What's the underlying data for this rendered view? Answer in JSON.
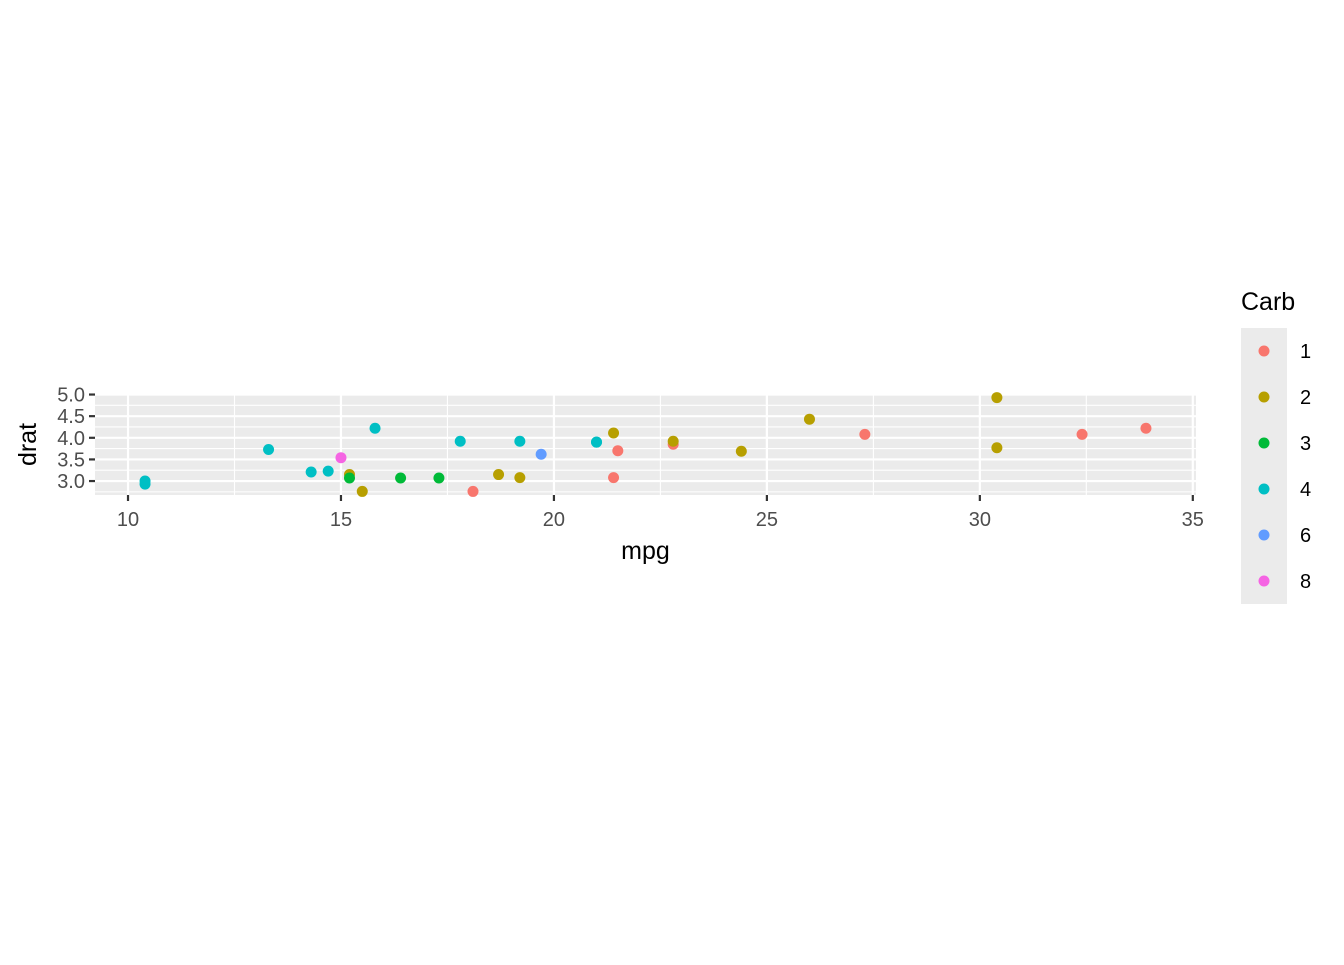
{
  "chart_data": {
    "type": "scatter",
    "title": "",
    "xlabel": "mpg",
    "ylabel": "drat",
    "xlim": [
      9.225,
      35.075
    ],
    "ylim": [
      2.6775,
      5.0125
    ],
    "x_ticks": [
      10,
      15,
      20,
      25,
      30,
      35
    ],
    "x_tick_labels": [
      "10",
      "15",
      "20",
      "25",
      "30",
      "35"
    ],
    "y_ticks": [
      3.0,
      3.5,
      4.0,
      4.5,
      5.0
    ],
    "y_tick_labels": [
      "3.0",
      "3.5",
      "4.0",
      "4.5",
      "5.0"
    ],
    "grid": true,
    "legend": {
      "title": "Carb",
      "position": "right"
    },
    "series": [
      {
        "name": "1",
        "color": "#F8766D",
        "points": [
          [
            22.8,
            3.85
          ],
          [
            21.4,
            3.08
          ],
          [
            18.1,
            2.76
          ],
          [
            32.4,
            4.08
          ],
          [
            33.9,
            4.22
          ],
          [
            21.5,
            3.7
          ],
          [
            27.3,
            4.08
          ]
        ]
      },
      {
        "name": "2",
        "color": "#B79F00",
        "points": [
          [
            18.7,
            3.15
          ],
          [
            24.4,
            3.69
          ],
          [
            22.8,
            3.92
          ],
          [
            15.5,
            2.76
          ],
          [
            15.2,
            3.15
          ],
          [
            30.4,
            4.93
          ],
          [
            19.2,
            3.08
          ],
          [
            26.0,
            4.43
          ],
          [
            30.4,
            3.77
          ],
          [
            21.4,
            4.11
          ]
        ]
      },
      {
        "name": "3",
        "color": "#00BA38",
        "points": [
          [
            16.4,
            3.07
          ],
          [
            17.3,
            3.07
          ],
          [
            15.2,
            3.07
          ]
        ]
      },
      {
        "name": "4",
        "color": "#00BFC4",
        "points": [
          [
            21.0,
            3.9
          ],
          [
            21.0,
            3.9
          ],
          [
            14.3,
            3.21
          ],
          [
            19.2,
            3.92
          ],
          [
            17.8,
            3.92
          ],
          [
            10.4,
            2.93
          ],
          [
            10.4,
            3.0
          ],
          [
            14.7,
            3.23
          ],
          [
            13.3,
            3.73
          ],
          [
            15.8,
            4.22
          ]
        ]
      },
      {
        "name": "6",
        "color": "#619CFF",
        "points": [
          [
            19.7,
            3.62
          ]
        ]
      },
      {
        "name": "8",
        "color": "#F564E3",
        "points": [
          [
            15.0,
            3.54
          ]
        ]
      }
    ]
  }
}
